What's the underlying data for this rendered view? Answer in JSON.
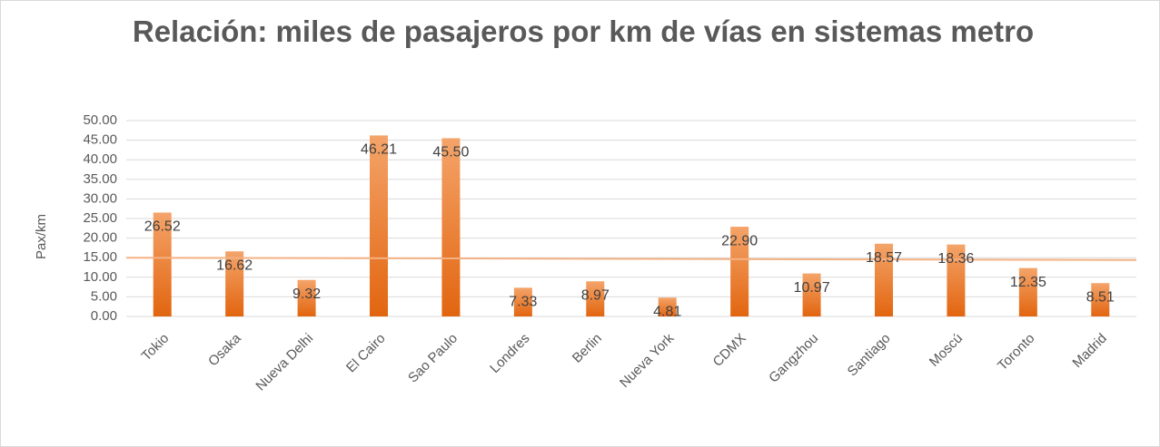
{
  "chart_data": {
    "type": "bar",
    "title": "Relación: miles de pasajeros por km de vías en sistemas metro",
    "y_label": "Pax/km",
    "categories": [
      "Tokio",
      "Osaka",
      "Nueva Delhi",
      "El Cairo",
      "Sao Paulo",
      "Londres",
      "Berlin",
      "Nueva York",
      "CDMX",
      "Gangzhou",
      "Santiago",
      "Moscú",
      "Toronto",
      "Madrid"
    ],
    "values": [
      26.52,
      16.62,
      9.32,
      46.21,
      45.5,
      7.33,
      8.97,
      4.81,
      22.9,
      10.97,
      18.57,
      18.36,
      12.35,
      8.51
    ],
    "value_labels": [
      "26.52",
      "16.62",
      "9.32",
      "46.21",
      "45.50",
      "7.33",
      "8.97",
      "4.81",
      "22.90",
      "10.97",
      "18.57",
      "18.36",
      "12.35",
      "8.51"
    ],
    "color": "#ed7d31",
    "trend_line": [
      15.0,
      14.4
    ],
    "trend_color": "#f4b183",
    "ylim": [
      0,
      50
    ],
    "yticks": [
      {
        "value": 0,
        "label": "0.00"
      },
      {
        "value": 5,
        "label": "5.00"
      },
      {
        "value": 10,
        "label": "10.00"
      },
      {
        "value": 15,
        "label": "15.00"
      },
      {
        "value": 20,
        "label": "20.00"
      },
      {
        "value": 25,
        "label": "25.00"
      },
      {
        "value": 30,
        "label": "30.00"
      },
      {
        "value": 35,
        "label": "35.00"
      },
      {
        "value": 40,
        "label": "40.00"
      },
      {
        "value": 45,
        "label": "45.00"
      },
      {
        "value": 50,
        "label": "50.00"
      }
    ],
    "grid": true
  }
}
